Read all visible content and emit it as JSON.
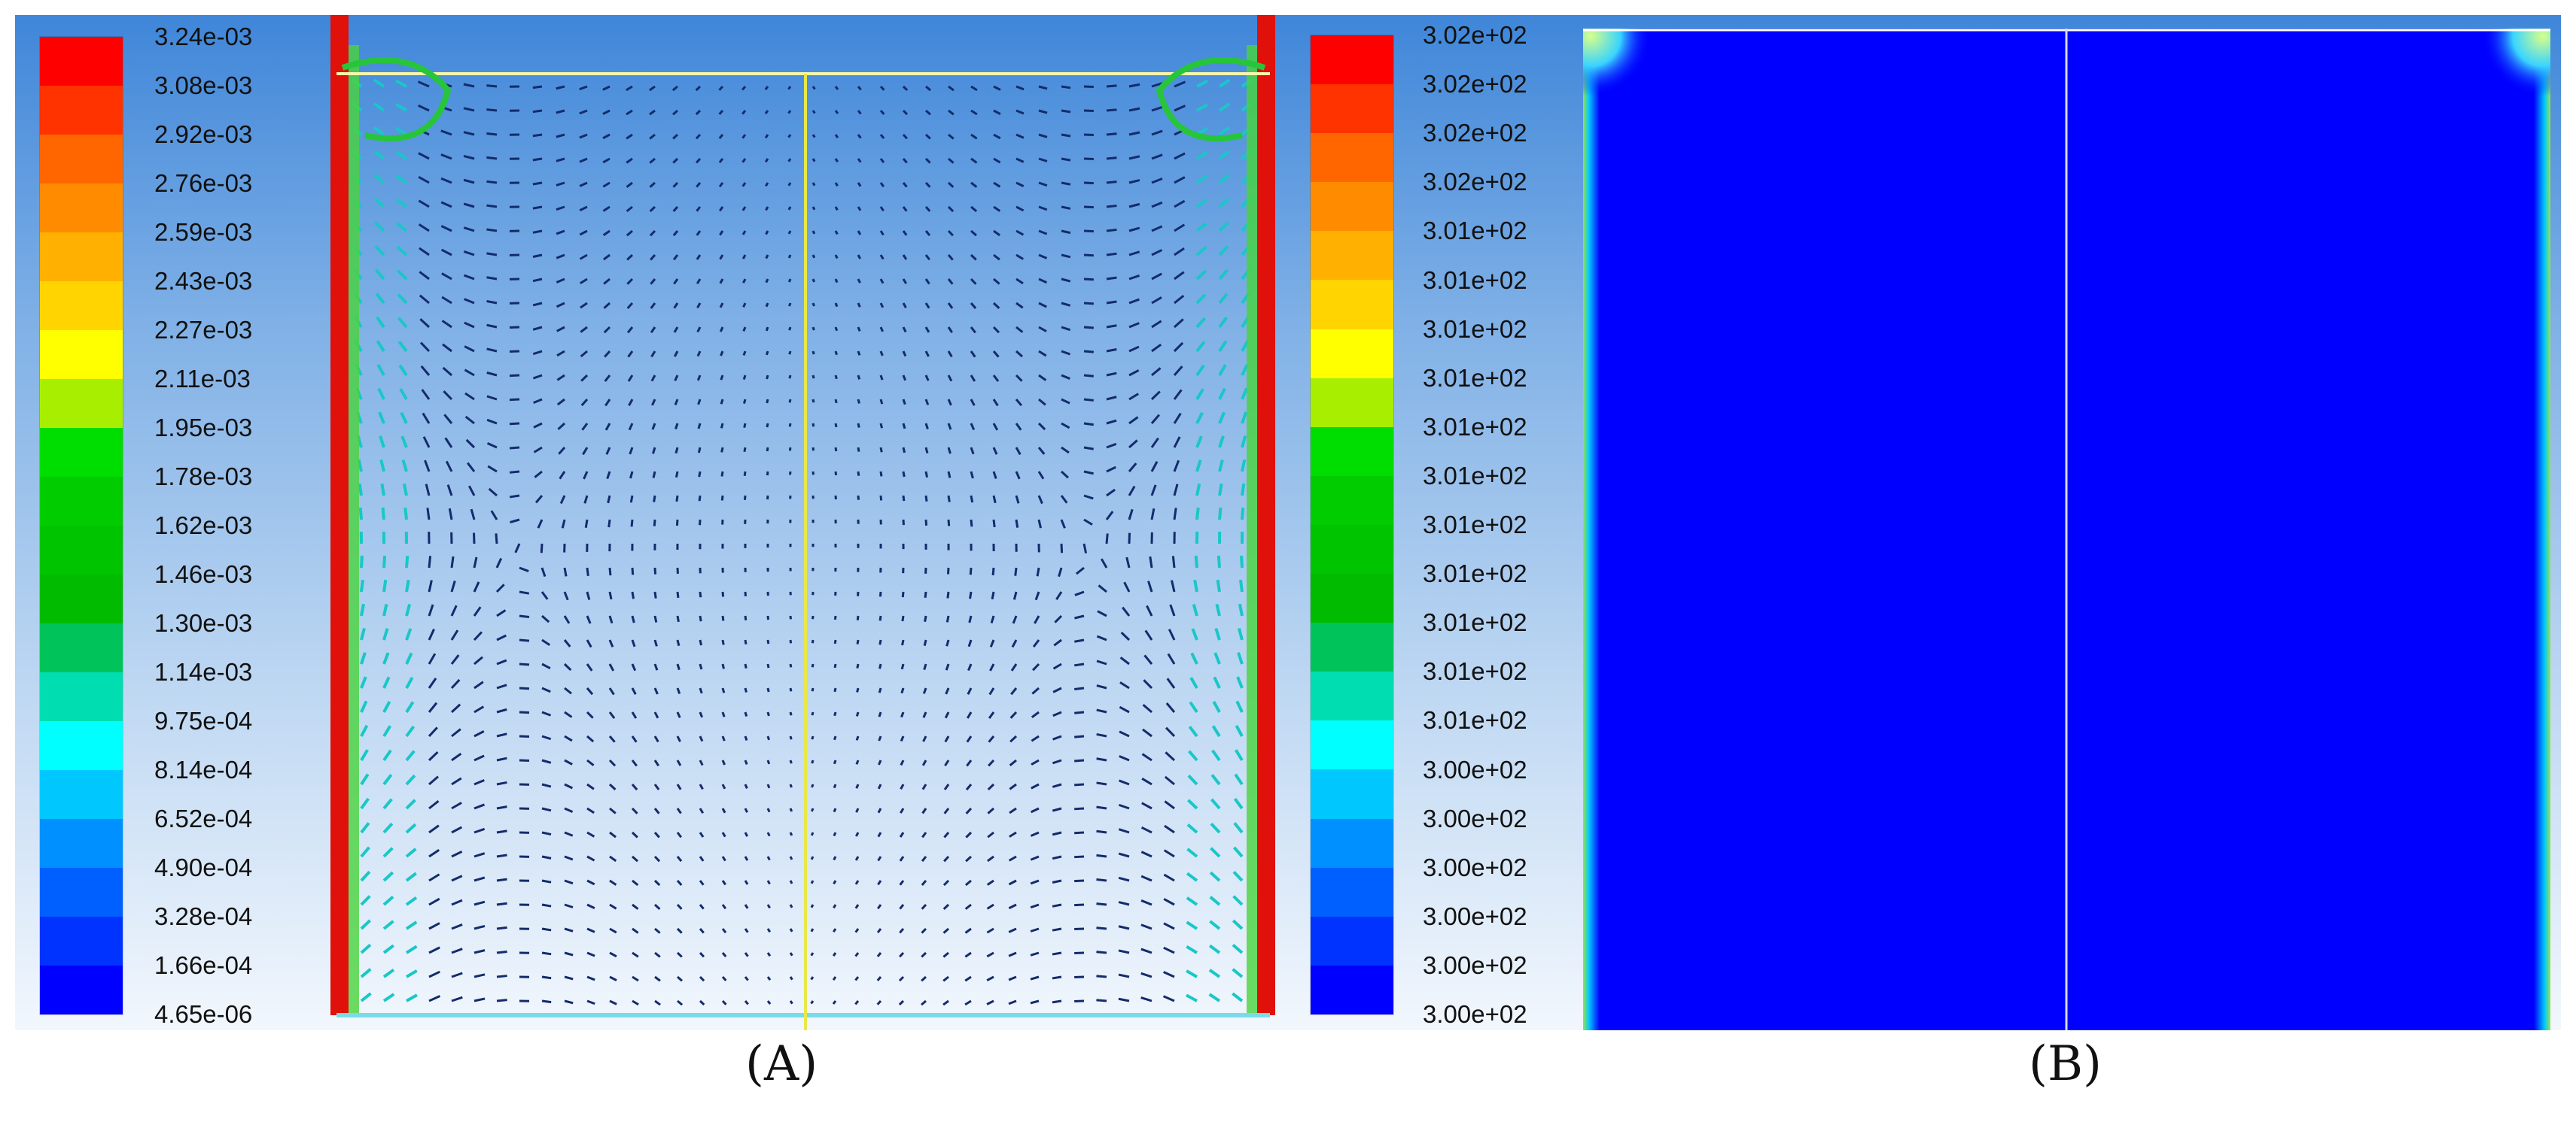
{
  "panels": {
    "a": {
      "label": "(A)",
      "legend_ticks": [
        "3.24e-03",
        "3.08e-03",
        "2.92e-03",
        "2.76e-03",
        "2.59e-03",
        "2.43e-03",
        "2.27e-03",
        "2.11e-03",
        "1.95e-03",
        "1.78e-03",
        "1.62e-03",
        "1.46e-03",
        "1.30e-03",
        "1.14e-03",
        "9.75e-04",
        "8.14e-04",
        "6.52e-04",
        "4.90e-04",
        "3.28e-04",
        "1.66e-04",
        "4.65e-06"
      ],
      "plot_desc": "velocity vectors"
    },
    "b": {
      "label": "(B)",
      "legend_ticks": [
        "3.02e+02",
        "3.02e+02",
        "3.02e+02",
        "3.02e+02",
        "3.01e+02",
        "3.01e+02",
        "3.01e+02",
        "3.01e+02",
        "3.01e+02",
        "3.01e+02",
        "3.01e+02",
        "3.01e+02",
        "3.01e+02",
        "3.01e+02",
        "3.01e+02",
        "3.00e+02",
        "3.00e+02",
        "3.00e+02",
        "3.00e+02",
        "3.00e+02",
        "3.00e+02"
      ],
      "plot_desc": "temperature contour"
    }
  },
  "colormap": [
    "#ff0000",
    "#ff3300",
    "#ff6600",
    "#ff8c00",
    "#ffb000",
    "#ffd400",
    "#ffff00",
    "#a8ee00",
    "#00dd00",
    "#00cc00",
    "#00c400",
    "#00bb00",
    "#00c45a",
    "#00ddb0",
    "#00ffff",
    "#00c8ff",
    "#0090ff",
    "#0060ff",
    "#0033ff",
    "#0000ff"
  ]
}
